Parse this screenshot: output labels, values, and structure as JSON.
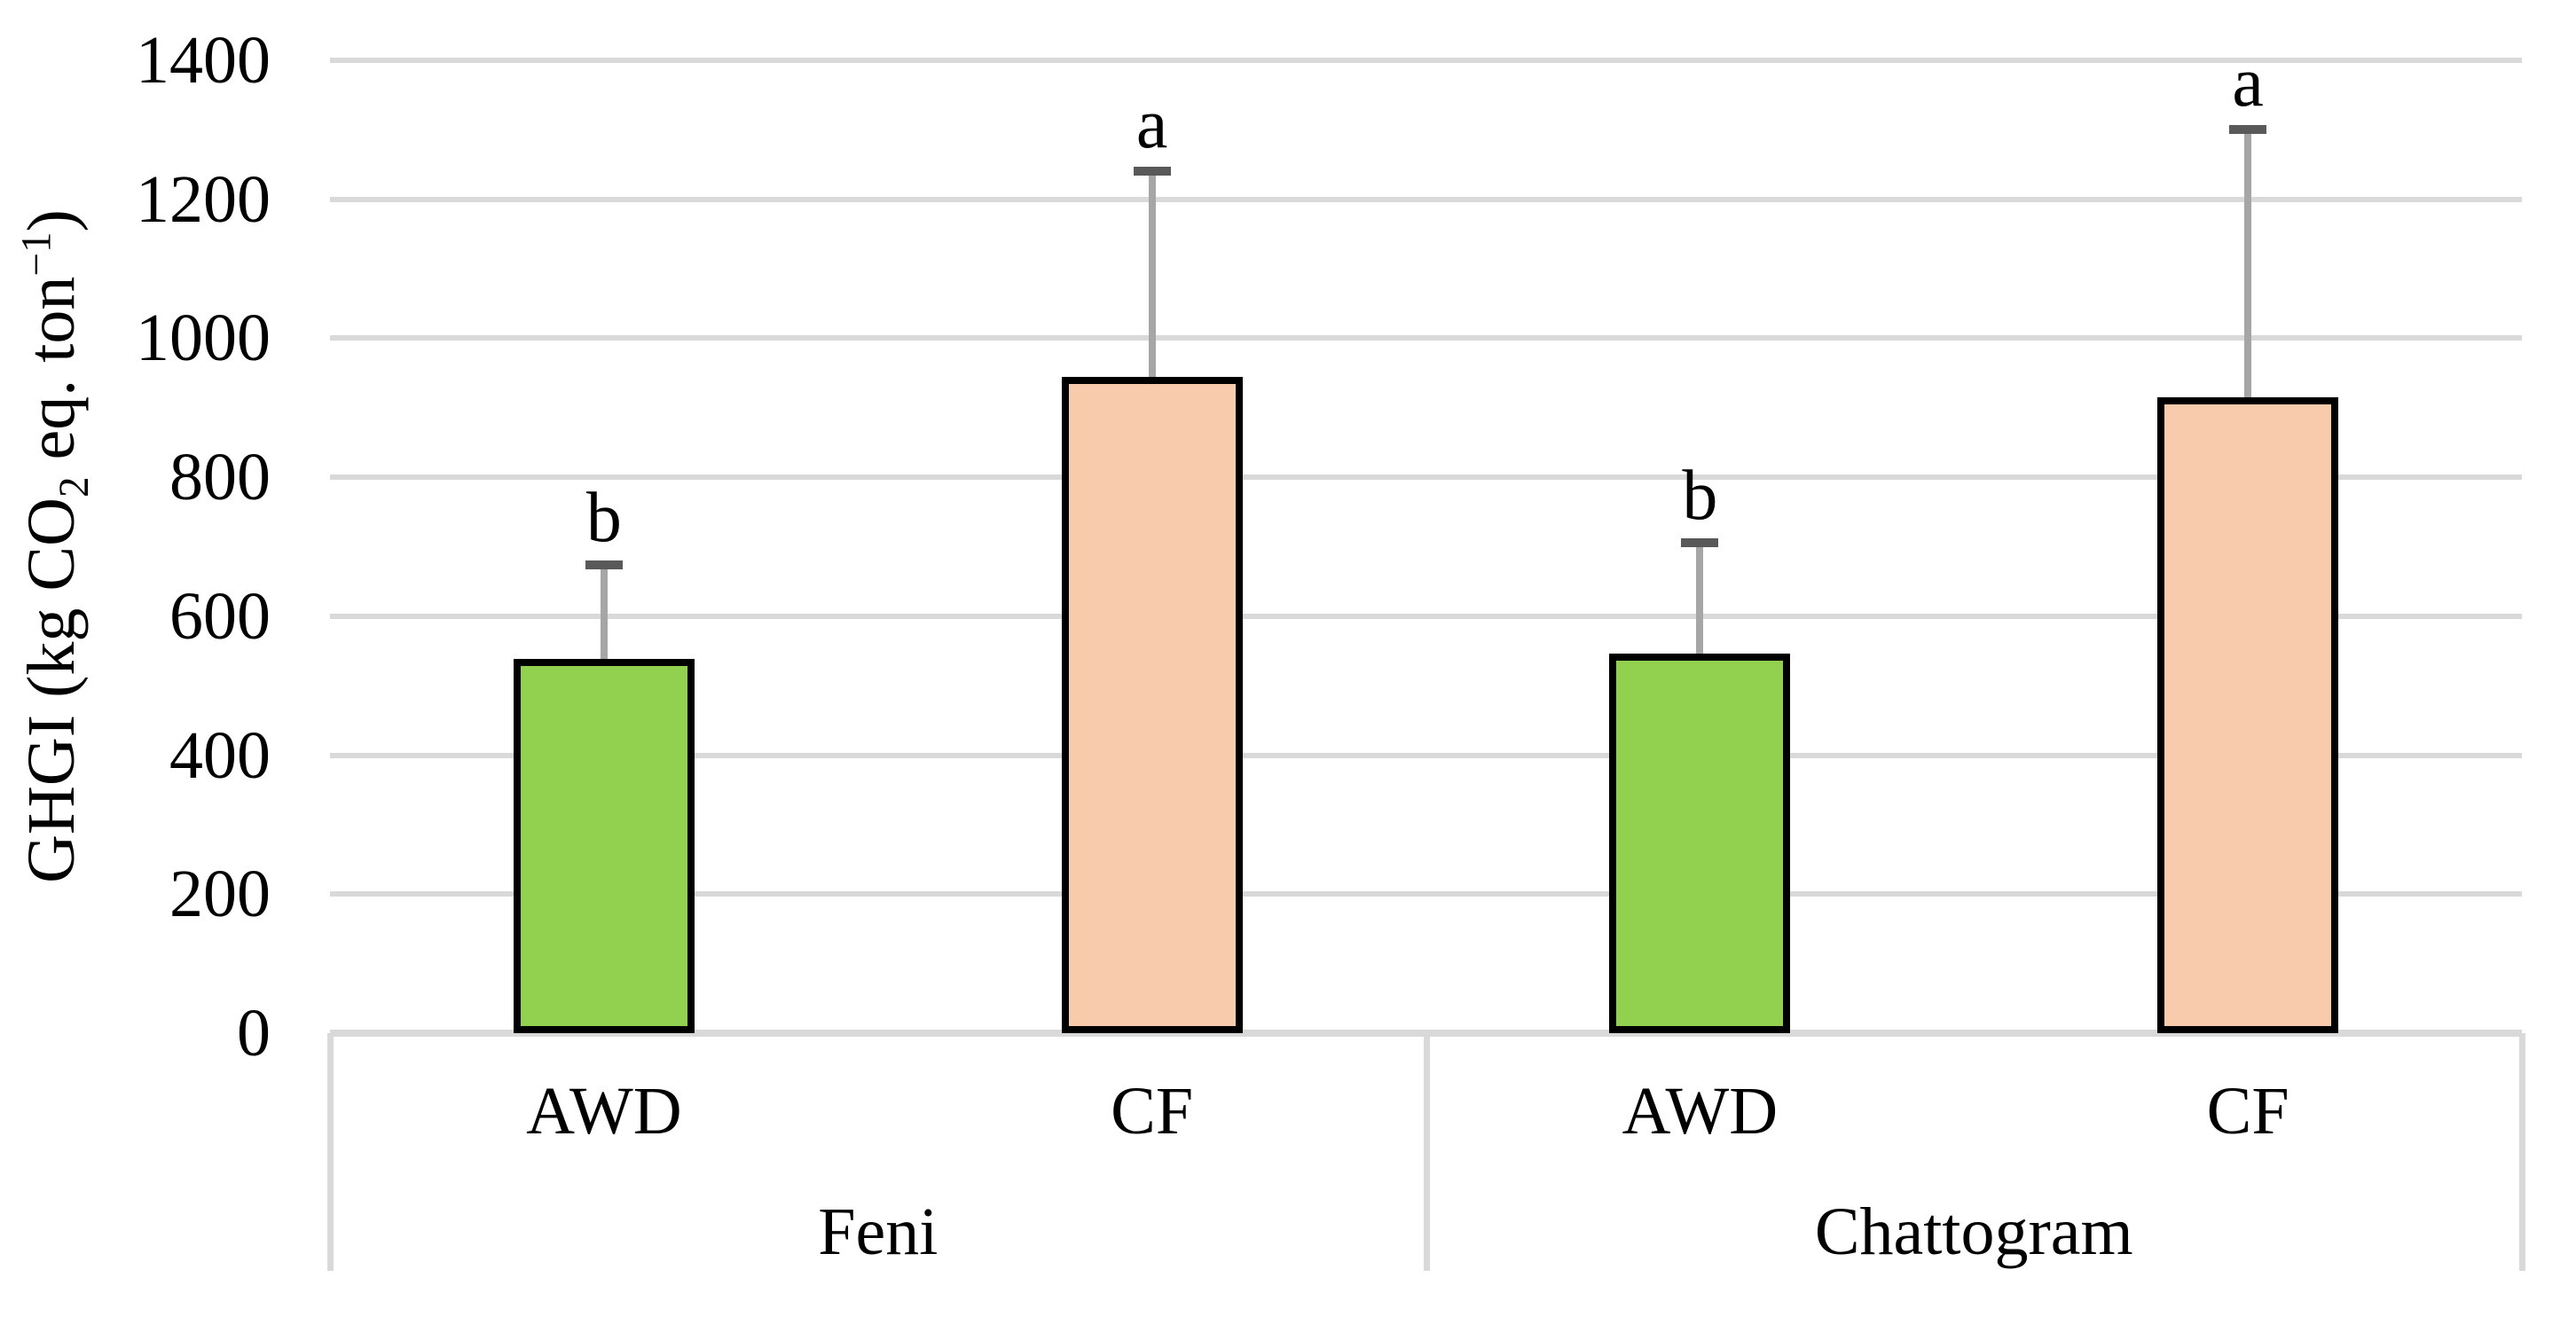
{
  "chart_data": {
    "type": "bar",
    "title": "",
    "xlabel": "",
    "ylabel": "GHGI (kg CO2 eq. ton−1)",
    "ylabel_rich": {
      "prefix": "GHGI (kg CO",
      "sub": "2",
      "mid": " eq. ton",
      "sup": "−1",
      "suffix": ")"
    },
    "ylim": [
      0,
      1400
    ],
    "ytick_step": 200,
    "yticks": [
      0,
      200,
      400,
      600,
      800,
      1000,
      1200,
      1400
    ],
    "grid": "horizontal",
    "legend": "none",
    "axis_style": "grouped-category",
    "series": [
      {
        "name": "AWD",
        "color": "#92D050"
      },
      {
        "name": "CF",
        "color": "#F8CBAD"
      }
    ],
    "groups": [
      {
        "label": "Feni",
        "bars": [
          {
            "treatment": "AWD",
            "value": 538,
            "error_plus": 136,
            "sig_letter": "b",
            "fill": "#92D050"
          },
          {
            "treatment": "CF",
            "value": 944,
            "error_plus": 296,
            "sig_letter": "a",
            "fill": "#F8CBAD"
          }
        ]
      },
      {
        "label": "Chattogram",
        "bars": [
          {
            "treatment": "AWD",
            "value": 546,
            "error_plus": 160,
            "sig_letter": "b",
            "fill": "#92D050"
          },
          {
            "treatment": "CF",
            "value": 915,
            "error_plus": 385,
            "sig_letter": "a",
            "fill": "#F8CBAD"
          }
        ]
      }
    ],
    "styles": {
      "bar_border": "#000000",
      "error_line": "#A6A6A6",
      "error_cap": "#595959",
      "gridline": "#D9D9D9",
      "axis_line": "#D9D9D9",
      "text": "#000000"
    }
  }
}
